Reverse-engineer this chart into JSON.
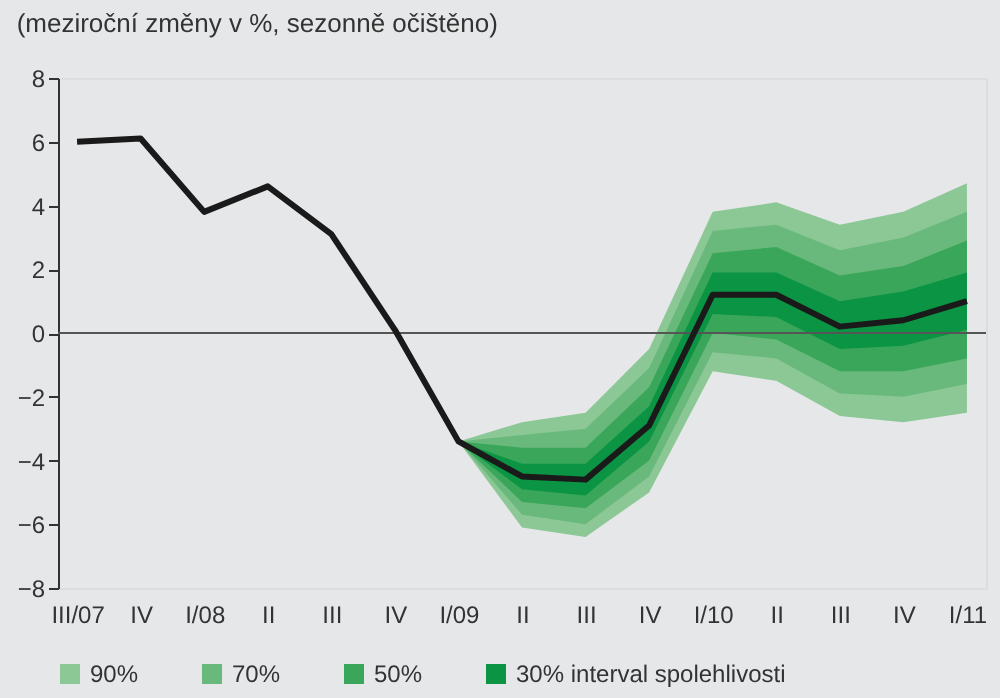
{
  "chart_data": {
    "type": "line",
    "title": "(meziroční změny v %, sezonně očištěno)",
    "categories": [
      "III/07",
      "IV",
      "I/08",
      "II",
      "III",
      "IV",
      "I/09",
      "II",
      "III",
      "IV",
      "I/10",
      "II",
      "III",
      "IV",
      "I/11"
    ],
    "series": [
      {
        "name": "90%",
        "type": "area",
        "color": "#8cc896",
        "values": [
          null,
          null,
          null,
          null,
          null,
          null,
          null,
          null,
          null,
          null,
          null,
          null,
          null,
          null,
          null
        ],
        "lower": [
          null,
          null,
          null,
          null,
          null,
          null,
          -3.4,
          -6.1,
          -6.4,
          -5.0,
          -1.2,
          -1.5,
          -2.6,
          -2.8,
          -2.5
        ],
        "upper": [
          null,
          null,
          null,
          null,
          null,
          null,
          -3.4,
          -2.8,
          -2.5,
          -0.5,
          3.8,
          4.1,
          3.4,
          3.8,
          4.7
        ]
      },
      {
        "name": "70%",
        "type": "area",
        "color": "#6ab97c",
        "values": [
          null,
          null,
          null,
          null,
          null,
          null,
          null,
          null,
          null,
          null,
          null,
          null,
          null,
          null,
          null
        ],
        "lower": [
          null,
          null,
          null,
          null,
          null,
          null,
          -3.4,
          -5.7,
          -6.0,
          -4.5,
          -0.6,
          -0.8,
          -1.9,
          -2.0,
          -1.6
        ],
        "upper": [
          null,
          null,
          null,
          null,
          null,
          null,
          -3.4,
          -3.2,
          -3.0,
          -1.1,
          3.2,
          3.4,
          2.6,
          3.0,
          3.8
        ]
      },
      {
        "name": "50%",
        "type": "area",
        "color": "#3aa65a",
        "values": [
          null,
          null,
          null,
          null,
          null,
          null,
          null,
          null,
          null,
          null,
          null,
          null,
          null,
          null,
          null
        ],
        "lower": [
          null,
          null,
          null,
          null,
          null,
          null,
          -3.4,
          -5.3,
          -5.5,
          -4.0,
          0.0,
          -0.2,
          -1.2,
          -1.2,
          -0.8
        ],
        "upper": [
          null,
          null,
          null,
          null,
          null,
          null,
          -3.4,
          -3.6,
          -3.6,
          -1.7,
          2.5,
          2.7,
          1.8,
          2.1,
          2.9
        ]
      },
      {
        "name": "30% interval spolehlivosti",
        "type": "area",
        "color": "#0a9444",
        "values": [
          null,
          null,
          null,
          null,
          null,
          null,
          null,
          null,
          null,
          null,
          null,
          null,
          null,
          null,
          null
        ],
        "lower": [
          null,
          null,
          null,
          null,
          null,
          null,
          -3.4,
          -4.9,
          -5.1,
          -3.4,
          0.6,
          0.5,
          -0.5,
          -0.4,
          0.1
        ],
        "upper": [
          null,
          null,
          null,
          null,
          null,
          null,
          -3.4,
          -4.1,
          -4.1,
          -2.3,
          1.9,
          1.9,
          1.0,
          1.3,
          1.9
        ]
      },
      {
        "color": "#1a1a1a",
        "values": [
          6.0,
          6.1,
          3.8,
          4.6,
          3.1,
          0.1,
          -3.4,
          -4.5,
          -4.6,
          -2.9,
          1.2,
          1.2,
          0.2,
          0.4,
          1.0
        ]
      }
    ],
    "ref_lines": [
      {
        "axis": "y",
        "value": 0,
        "color": "#555555"
      }
    ],
    "ylim": [
      -8,
      8
    ],
    "yticks": [
      -8,
      -6,
      -4,
      -2,
      0,
      2,
      4,
      6,
      8
    ],
    "grid": false,
    "legend": "bottom",
    "line_style": "solid",
    "marker": "none"
  }
}
